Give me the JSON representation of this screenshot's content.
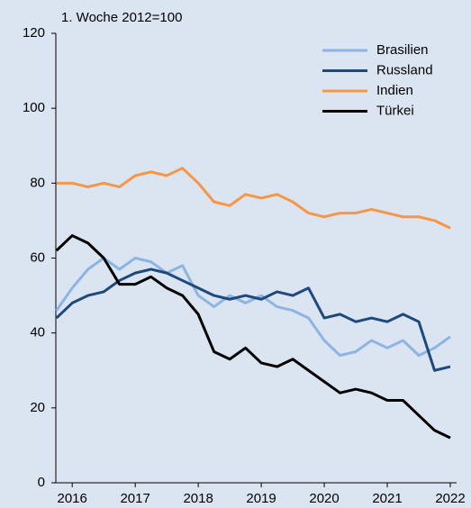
{
  "chart_data": {
    "type": "line",
    "annotation": "1. Woche 2012=100",
    "x": [
      2015.75,
      2016,
      2016.25,
      2016.5,
      2016.75,
      2017,
      2017.25,
      2017.5,
      2017.75,
      2018,
      2018.25,
      2018.5,
      2018.75,
      2019,
      2019.25,
      2019.5,
      2019.75,
      2020,
      2020.25,
      2020.5,
      2020.75,
      2021,
      2021.25,
      2021.5,
      2021.75,
      2022
    ],
    "series": [
      {
        "name": "Brasilien",
        "color": "#8db4e2",
        "values": [
          46,
          52,
          57,
          60,
          57,
          60,
          59,
          56,
          58,
          50,
          47,
          50,
          48,
          50,
          47,
          46,
          44,
          38,
          34,
          35,
          38,
          36,
          38,
          34,
          36,
          39
        ]
      },
      {
        "name": "Russland",
        "color": "#1f497d",
        "values": [
          44,
          48,
          50,
          51,
          54,
          56,
          57,
          56,
          54,
          52,
          50,
          49,
          50,
          49,
          51,
          50,
          52,
          44,
          45,
          43,
          44,
          43,
          45,
          43,
          30,
          31
        ]
      },
      {
        "name": "Indien",
        "color": "#f79646",
        "values": [
          80,
          80,
          79,
          80,
          79,
          82,
          83,
          82,
          84,
          80,
          75,
          74,
          77,
          76,
          77,
          75,
          72,
          71,
          72,
          72,
          73,
          72,
          71,
          71,
          70,
          68
        ]
      },
      {
        "name": "Türkei",
        "color": "#000000",
        "values": [
          62,
          66,
          64,
          60,
          53,
          53,
          55,
          52,
          50,
          45,
          35,
          33,
          36,
          32,
          31,
          33,
          30,
          27,
          24,
          25,
          24,
          22,
          22,
          18,
          14,
          12
        ]
      }
    ],
    "xlim": [
      2015.74,
      2022.1
    ],
    "xticks": [
      2016,
      2017,
      2018,
      2019,
      2020,
      2021,
      2022
    ],
    "ylim": [
      0,
      120
    ],
    "yticks": [
      0,
      20,
      40,
      60,
      80,
      100,
      120
    ],
    "grid": false,
    "legend": "upper right"
  }
}
